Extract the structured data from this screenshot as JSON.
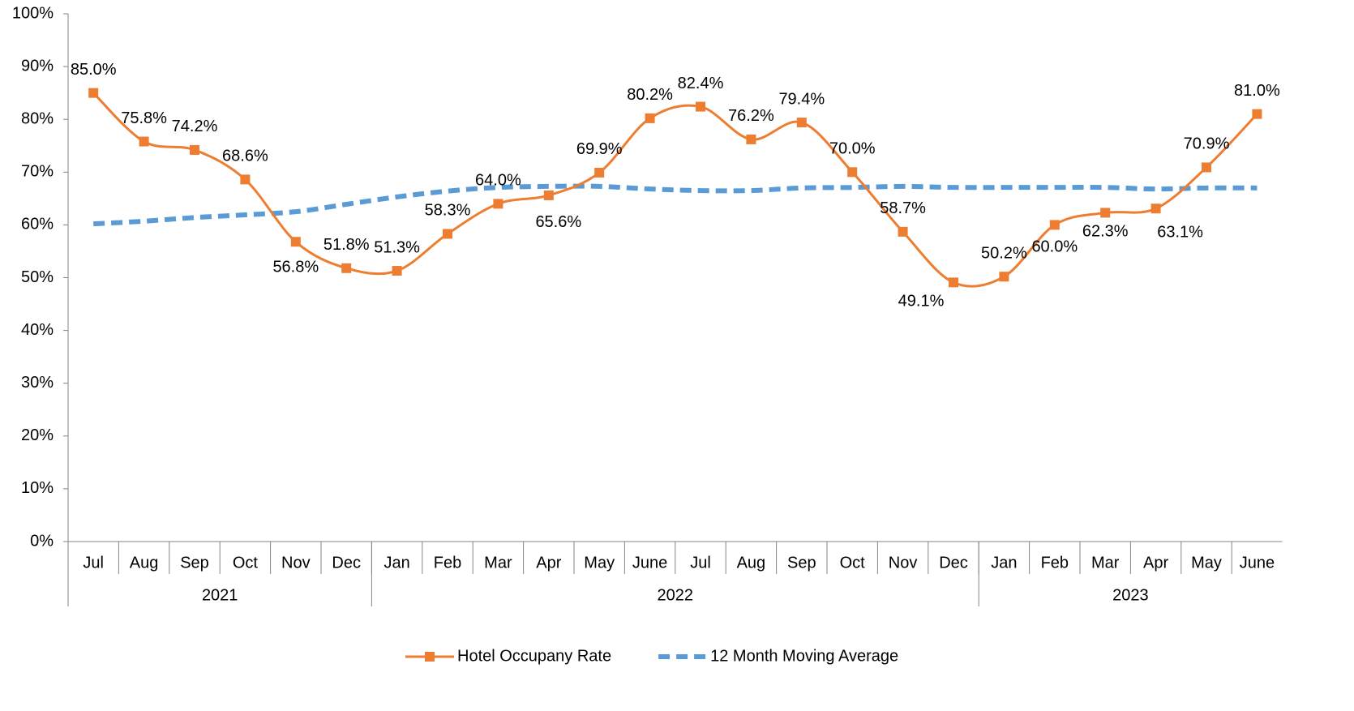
{
  "chart_data": {
    "type": "line",
    "categories": [
      "Jul",
      "Aug",
      "Sep",
      "Oct",
      "Nov",
      "Dec",
      "Jan",
      "Feb",
      "Mar",
      "Apr",
      "May",
      "June",
      "Jul",
      "Aug",
      "Sep",
      "Oct",
      "Nov",
      "Dec",
      "Jan",
      "Feb",
      "Mar",
      "Apr",
      "May",
      "June"
    ],
    "year_groups": [
      {
        "name": "2021",
        "span": 6
      },
      {
        "name": "2022",
        "span": 12
      },
      {
        "name": "2023",
        "span": 6
      }
    ],
    "series": [
      {
        "name": "Hotel Occupany Rate",
        "color": "#ed7d31",
        "style": "solid",
        "marker": "square",
        "values": [
          85.0,
          75.8,
          74.2,
          68.6,
          56.8,
          51.8,
          51.3,
          58.3,
          64.0,
          65.6,
          69.9,
          80.2,
          82.4,
          76.2,
          79.4,
          70.0,
          58.7,
          49.1,
          50.2,
          60.0,
          62.3,
          63.1,
          70.9,
          81.0
        ],
        "value_labels": [
          "85.0%",
          "75.8%",
          "74.2%",
          "68.6%",
          "56.8%",
          "51.8%",
          "51.3%",
          "58.3%",
          "64.0%",
          "65.6%",
          "69.9%",
          "80.2%",
          "82.4%",
          "76.2%",
          "79.4%",
          "70.0%",
          "58.7%",
          "49.1%",
          "50.2%",
          "60.0%",
          "62.3%",
          "63.1%",
          "70.9%",
          "81.0%"
        ]
      },
      {
        "name": "12 Month Moving Average",
        "color": "#5b9bd5",
        "style": "dashed",
        "values": [
          60.2,
          60.7,
          61.4,
          61.9,
          62.5,
          63.9,
          65.3,
          66.4,
          67.1,
          67.3,
          67.3,
          66.8,
          66.5,
          66.5,
          67.0,
          67.1,
          67.3,
          67.1,
          67.1,
          67.1,
          67.1,
          66.8,
          67.0,
          67.0
        ]
      }
    ],
    "ylim": [
      0,
      100
    ],
    "yticks": [
      {
        "value": 0,
        "label": "0%"
      },
      {
        "value": 10,
        "label": "10%"
      },
      {
        "value": 20,
        "label": "20%"
      },
      {
        "value": 30,
        "label": "30%"
      },
      {
        "value": 40,
        "label": "40%"
      },
      {
        "value": 50,
        "label": "50%"
      },
      {
        "value": 60,
        "label": "60%"
      },
      {
        "value": 70,
        "label": "70%"
      },
      {
        "value": 80,
        "label": "80%"
      },
      {
        "value": 90,
        "label": "90%"
      },
      {
        "value": 100,
        "label": "100%"
      }
    ],
    "grid": false,
    "legend": "bottom"
  }
}
